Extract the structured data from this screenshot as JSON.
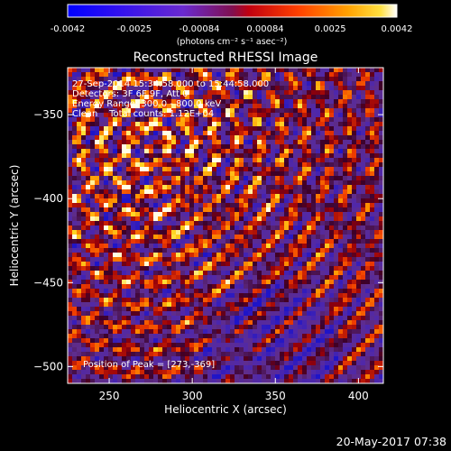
{
  "chart_data": {
    "type": "heatmap",
    "title": "Reconstructed RHESSI Image",
    "colorbar": {
      "ticks": [
        "-0.0042",
        "-0.0025",
        "-0.00084",
        "0.00084",
        "0.0025",
        "0.0042"
      ],
      "tick_values": [
        -0.0042,
        -0.0025,
        -0.00084,
        0.00084,
        0.0025,
        0.0042
      ],
      "range": [
        -0.0042,
        0.0042
      ],
      "units": "(photons cm⁻² s⁻¹ asec⁻²)",
      "colors": [
        "#1010ff",
        "#7a2ad8",
        "#b02020",
        "#ff5a00",
        "#ffd400",
        "#ffffff"
      ]
    },
    "xlabel": "Heliocentric X (arcsec)",
    "ylabel": "Heliocentric Y (arcsec)",
    "xlim": [
      225,
      415
    ],
    "ylim": [
      -510,
      -322
    ],
    "xticks": [
      250,
      300,
      350,
      400
    ],
    "yticks": [
      -350,
      -400,
      -450,
      -500
    ],
    "xtick_labels": [
      "250",
      "300",
      "350",
      "400"
    ],
    "ytick_labels": [
      "−350",
      "−400",
      "−450",
      "−500"
    ],
    "peak": [
      273,
      -369
    ],
    "annotations": {
      "time": "27-Sep-2014 15:34:58.000 to 15:44:58.000",
      "detectors": "Detectors: 3F 6F 9F, Att 0",
      "energy": "Energy Range: 300.0 - 800.0 keV",
      "clean": "Clean    Total counts: 1.12E+04",
      "peak_text": "Position of Peak = [273,-369]"
    }
  },
  "footer": {
    "date": "20-May-2017 07:38"
  }
}
